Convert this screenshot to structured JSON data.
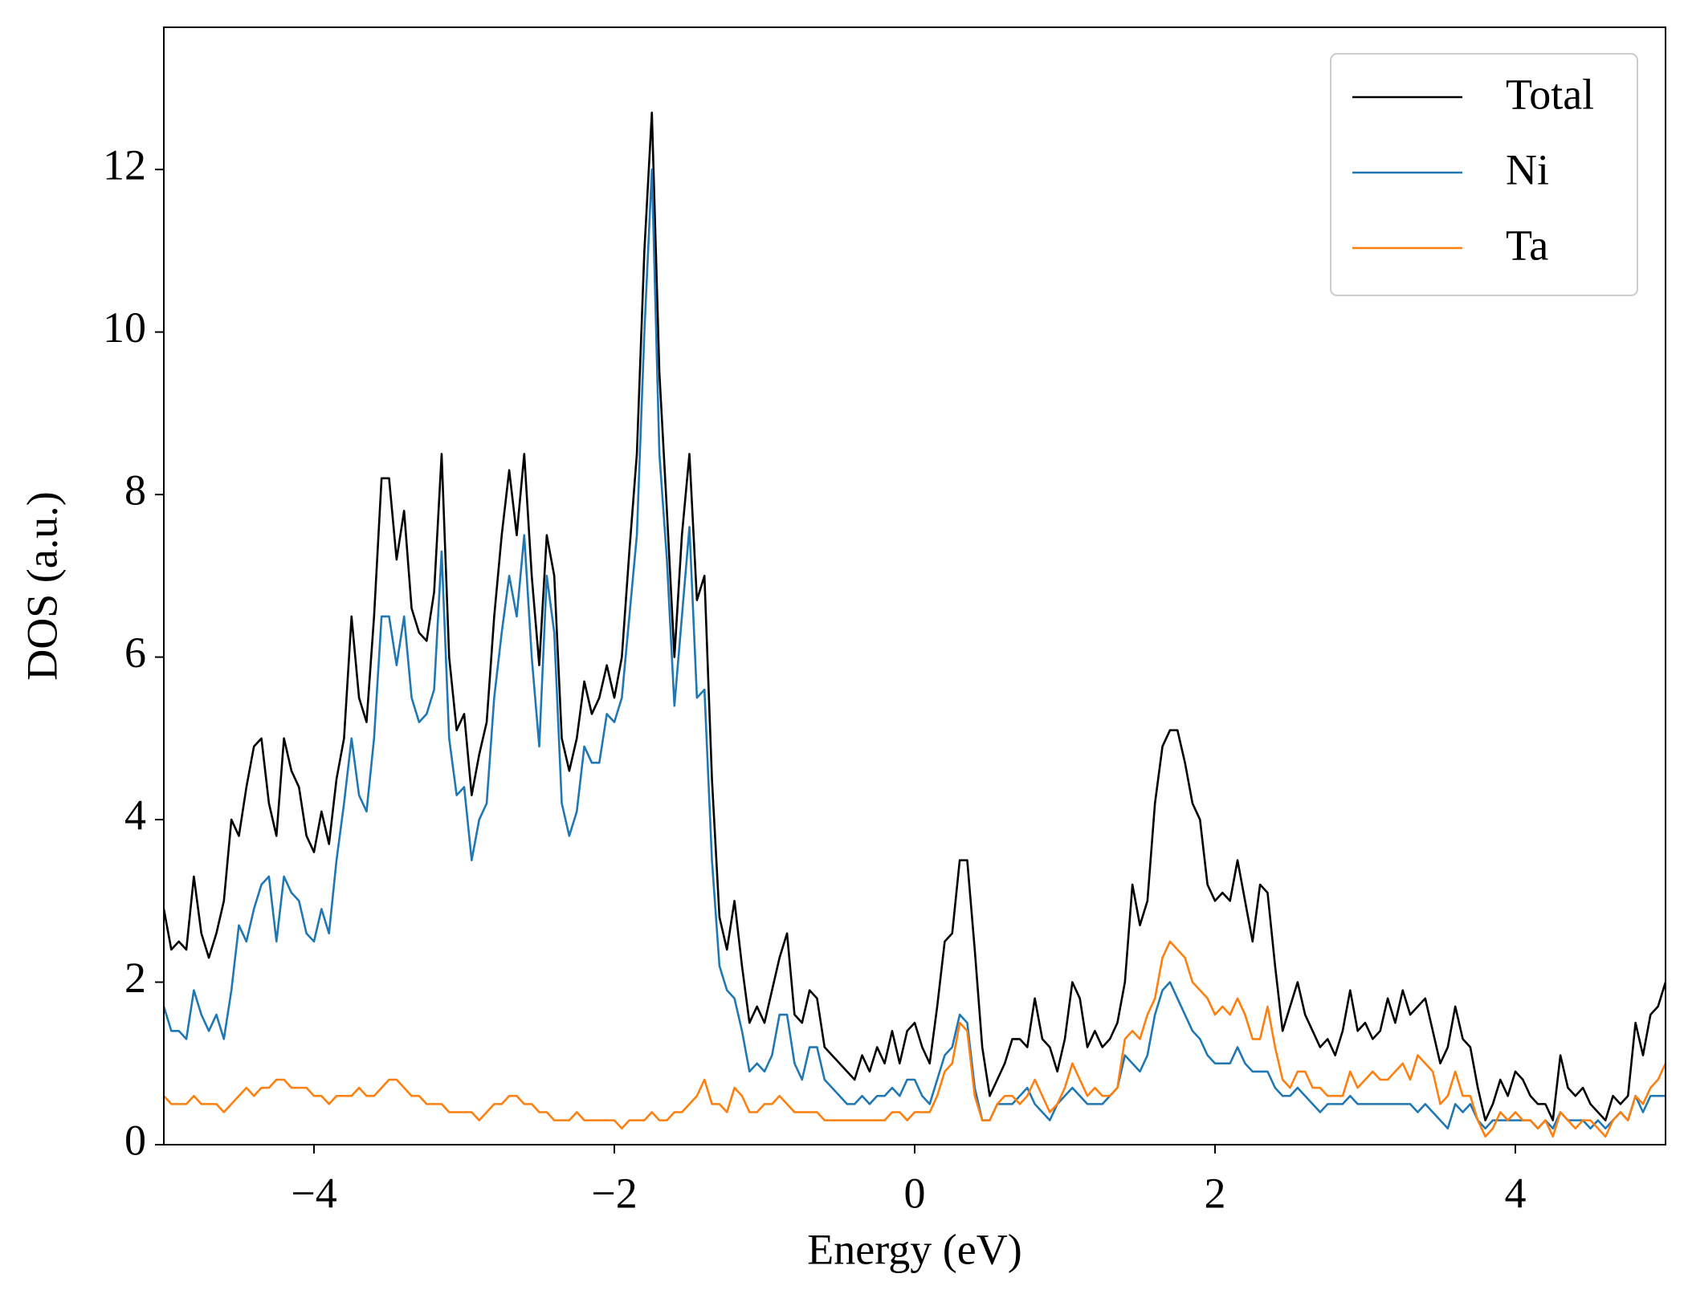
{
  "chart_data": {
    "type": "line",
    "xlabel": "Energy (eV)",
    "ylabel": "DOS (a.u.)",
    "xlim": [
      -5,
      5
    ],
    "ylim": [
      0,
      13.75
    ],
    "xticks": [
      {
        "value": -4,
        "label": "−4"
      },
      {
        "value": -2,
        "label": "−2"
      },
      0,
      2,
      4
    ],
    "yticks": [
      0,
      2,
      4,
      6,
      8,
      10,
      12
    ],
    "legend": "upper right",
    "x": [
      -5,
      -4.95,
      -4.9,
      -4.85,
      -4.8,
      -4.75,
      -4.7,
      -4.65,
      -4.6,
      -4.55,
      -4.5,
      -4.45,
      -4.4,
      -4.35,
      -4.3,
      -4.25,
      -4.2,
      -4.15,
      -4.1,
      -4.05,
      -4,
      -3.95,
      -3.9,
      -3.85,
      -3.8,
      -3.75,
      -3.7,
      -3.65,
      -3.6,
      -3.55,
      -3.5,
      -3.45,
      -3.4,
      -3.35,
      -3.3,
      -3.25,
      -3.2,
      -3.15,
      -3.1,
      -3.05,
      -3,
      -2.95,
      -2.9,
      -2.85,
      -2.8,
      -2.75,
      -2.7,
      -2.65,
      -2.6,
      -2.55,
      -2.5,
      -2.45,
      -2.4,
      -2.35,
      -2.3,
      -2.25,
      -2.2,
      -2.15,
      -2.1,
      -2.05,
      -2,
      -1.95,
      -1.9,
      -1.85,
      -1.8,
      -1.75,
      -1.7,
      -1.65,
      -1.6,
      -1.55,
      -1.5,
      -1.45,
      -1.4,
      -1.35,
      -1.3,
      -1.25,
      -1.2,
      -1.15,
      -1.1,
      -1.05,
      -1,
      -0.95,
      -0.9,
      -0.85,
      -0.8,
      -0.75,
      -0.7,
      -0.65,
      -0.6,
      -0.55,
      -0.5,
      -0.45,
      -0.4,
      -0.35,
      -0.3,
      -0.25,
      -0.2,
      -0.15,
      -0.1,
      -0.05,
      0,
      0.05,
      0.1,
      0.15,
      0.2,
      0.25,
      0.3,
      0.35,
      0.4,
      0.45,
      0.5,
      0.55,
      0.6,
      0.65,
      0.7,
      0.75,
      0.8,
      0.85,
      0.9,
      0.95,
      1,
      1.05,
      1.1,
      1.15,
      1.2,
      1.25,
      1.3,
      1.35,
      1.4,
      1.45,
      1.5,
      1.55,
      1.6,
      1.65,
      1.7,
      1.75,
      1.8,
      1.85,
      1.9,
      1.95,
      2,
      2.05,
      2.1,
      2.15,
      2.2,
      2.25,
      2.3,
      2.35,
      2.4,
      2.45,
      2.5,
      2.55,
      2.6,
      2.65,
      2.7,
      2.75,
      2.8,
      2.85,
      2.9,
      2.95,
      3,
      3.05,
      3.1,
      3.15,
      3.2,
      3.25,
      3.3,
      3.35,
      3.4,
      3.45,
      3.5,
      3.55,
      3.6,
      3.65,
      3.7,
      3.75,
      3.8,
      3.85,
      3.9,
      3.95,
      4,
      4.05,
      4.1,
      4.15,
      4.2,
      4.25,
      4.3,
      4.35,
      4.4,
      4.45,
      4.5,
      4.55,
      4.6,
      4.65,
      4.7,
      4.75,
      4.8,
      4.85,
      4.9,
      4.95,
      5
    ],
    "series": [
      {
        "name": "Total",
        "color": "#000000",
        "values": [
          2.9,
          2.4,
          2.5,
          2.4,
          3.3,
          2.6,
          2.3,
          2.6,
          3.0,
          4.0,
          3.8,
          4.4,
          4.9,
          5.0,
          4.2,
          3.8,
          5.0,
          4.6,
          4.4,
          3.8,
          3.6,
          4.1,
          3.7,
          4.5,
          5.0,
          6.5,
          5.5,
          5.2,
          6.5,
          8.2,
          8.2,
          7.2,
          7.8,
          6.6,
          6.3,
          6.2,
          6.8,
          8.5,
          6.0,
          5.1,
          5.3,
          4.3,
          4.8,
          5.2,
          6.5,
          7.5,
          8.3,
          7.5,
          8.5,
          7.0,
          5.9,
          7.5,
          7.0,
          5.0,
          4.6,
          5.0,
          5.7,
          5.3,
          5.5,
          5.9,
          5.5,
          6.0,
          7.3,
          8.5,
          11.0,
          12.7,
          9.5,
          7.8,
          6.0,
          7.5,
          8.5,
          6.7,
          7.0,
          4.5,
          2.8,
          2.4,
          3.0,
          2.2,
          1.5,
          1.7,
          1.5,
          1.9,
          2.3,
          2.6,
          1.6,
          1.5,
          1.9,
          1.8,
          1.2,
          1.1,
          1.0,
          0.9,
          0.8,
          1.1,
          0.9,
          1.2,
          1.0,
          1.4,
          1.0,
          1.4,
          1.5,
          1.2,
          1.0,
          1.7,
          2.5,
          2.6,
          3.5,
          3.5,
          2.4,
          1.2,
          0.6,
          0.8,
          1.0,
          1.3,
          1.3,
          1.2,
          1.8,
          1.3,
          1.2,
          0.9,
          1.3,
          2.0,
          1.8,
          1.2,
          1.4,
          1.2,
          1.3,
          1.5,
          2.0,
          3.2,
          2.7,
          3.0,
          4.2,
          4.9,
          5.1,
          5.1,
          4.7,
          4.2,
          4.0,
          3.2,
          3.0,
          3.1,
          3.0,
          3.5,
          3.0,
          2.5,
          3.2,
          3.1,
          2.2,
          1.4,
          1.7,
          2.0,
          1.6,
          1.4,
          1.2,
          1.3,
          1.1,
          1.4,
          1.9,
          1.4,
          1.5,
          1.3,
          1.4,
          1.8,
          1.5,
          1.9,
          1.6,
          1.7,
          1.8,
          1.4,
          1.0,
          1.2,
          1.7,
          1.3,
          1.2,
          0.7,
          0.3,
          0.5,
          0.8,
          0.6,
          0.9,
          0.8,
          0.6,
          0.5,
          0.5,
          0.3,
          1.1,
          0.7,
          0.6,
          0.7,
          0.5,
          0.4,
          0.3,
          0.6,
          0.5,
          0.6,
          1.5,
          1.1,
          1.6,
          1.7,
          2.0
        ]
      },
      {
        "name": "Ni",
        "color": "#1f77b4",
        "values": [
          1.7,
          1.4,
          1.4,
          1.3,
          1.9,
          1.6,
          1.4,
          1.6,
          1.3,
          1.9,
          2.7,
          2.5,
          2.9,
          3.2,
          3.3,
          2.5,
          3.3,
          3.1,
          3.0,
          2.6,
          2.5,
          2.9,
          2.6,
          3.5,
          4.2,
          5.0,
          4.3,
          4.1,
          5.0,
          6.5,
          6.5,
          5.9,
          6.5,
          5.5,
          5.2,
          5.3,
          5.6,
          7.3,
          5.0,
          4.3,
          4.4,
          3.5,
          4.0,
          4.2,
          5.5,
          6.3,
          7.0,
          6.5,
          7.5,
          6.0,
          4.9,
          7.0,
          6.3,
          4.2,
          3.8,
          4.1,
          4.9,
          4.7,
          4.7,
          5.3,
          5.2,
          5.5,
          6.5,
          7.5,
          10.0,
          12.0,
          8.5,
          7.2,
          5.4,
          6.5,
          7.6,
          5.5,
          5.6,
          3.5,
          2.2,
          1.9,
          1.8,
          1.4,
          0.9,
          1.0,
          0.9,
          1.1,
          1.6,
          1.6,
          1.0,
          0.8,
          1.2,
          1.2,
          0.8,
          0.7,
          0.6,
          0.5,
          0.5,
          0.6,
          0.5,
          0.6,
          0.6,
          0.7,
          0.6,
          0.8,
          0.8,
          0.6,
          0.5,
          0.8,
          1.1,
          1.2,
          1.6,
          1.5,
          0.7,
          0.3,
          0.3,
          0.5,
          0.5,
          0.5,
          0.6,
          0.7,
          0.5,
          0.4,
          0.3,
          0.5,
          0.6,
          0.7,
          0.6,
          0.5,
          0.5,
          0.5,
          0.6,
          0.7,
          1.1,
          1.0,
          0.9,
          1.1,
          1.6,
          1.9,
          2.0,
          1.8,
          1.6,
          1.4,
          1.3,
          1.1,
          1.0,
          1.0,
          1.0,
          1.2,
          1.0,
          0.9,
          0.9,
          0.9,
          0.7,
          0.6,
          0.6,
          0.7,
          0.6,
          0.5,
          0.4,
          0.5,
          0.5,
          0.5,
          0.6,
          0.5,
          0.5,
          0.5,
          0.5,
          0.5,
          0.5,
          0.5,
          0.5,
          0.4,
          0.5,
          0.4,
          0.3,
          0.2,
          0.5,
          0.4,
          0.5,
          0.3,
          0.2,
          0.3,
          0.3,
          0.3,
          0.3,
          0.3,
          0.3,
          0.2,
          0.3,
          0.2,
          0.4,
          0.3,
          0.3,
          0.3,
          0.2,
          0.3,
          0.2,
          0.3,
          0.4,
          0.3,
          0.6,
          0.4,
          0.6,
          0.6,
          0.6
        ]
      },
      {
        "name": "Ta",
        "color": "#ff7f0e",
        "values": [
          0.6,
          0.5,
          0.5,
          0.5,
          0.6,
          0.5,
          0.5,
          0.5,
          0.4,
          0.5,
          0.6,
          0.7,
          0.6,
          0.7,
          0.7,
          0.8,
          0.8,
          0.7,
          0.7,
          0.7,
          0.6,
          0.6,
          0.5,
          0.6,
          0.6,
          0.6,
          0.7,
          0.6,
          0.6,
          0.7,
          0.8,
          0.8,
          0.7,
          0.6,
          0.6,
          0.5,
          0.5,
          0.5,
          0.4,
          0.4,
          0.4,
          0.4,
          0.3,
          0.4,
          0.5,
          0.5,
          0.6,
          0.6,
          0.5,
          0.5,
          0.4,
          0.4,
          0.3,
          0.3,
          0.3,
          0.4,
          0.3,
          0.3,
          0.3,
          0.3,
          0.3,
          0.2,
          0.3,
          0.3,
          0.3,
          0.4,
          0.3,
          0.3,
          0.4,
          0.4,
          0.5,
          0.6,
          0.8,
          0.5,
          0.5,
          0.4,
          0.7,
          0.6,
          0.4,
          0.4,
          0.5,
          0.5,
          0.6,
          0.5,
          0.4,
          0.4,
          0.4,
          0.4,
          0.3,
          0.3,
          0.3,
          0.3,
          0.3,
          0.3,
          0.3,
          0.3,
          0.3,
          0.4,
          0.4,
          0.3,
          0.4,
          0.4,
          0.4,
          0.6,
          0.9,
          1.0,
          1.5,
          1.4,
          0.6,
          0.3,
          0.3,
          0.5,
          0.6,
          0.6,
          0.5,
          0.6,
          0.8,
          0.6,
          0.4,
          0.5,
          0.7,
          1.0,
          0.8,
          0.6,
          0.7,
          0.6,
          0.6,
          0.7,
          1.3,
          1.4,
          1.3,
          1.6,
          1.8,
          2.3,
          2.5,
          2.4,
          2.3,
          2.0,
          1.9,
          1.8,
          1.6,
          1.7,
          1.6,
          1.8,
          1.6,
          1.3,
          1.3,
          1.7,
          1.2,
          0.8,
          0.7,
          0.9,
          0.9,
          0.7,
          0.7,
          0.6,
          0.6,
          0.6,
          0.9,
          0.7,
          0.8,
          0.9,
          0.8,
          0.8,
          0.9,
          1.0,
          0.8,
          1.1,
          1.0,
          0.9,
          0.5,
          0.6,
          0.9,
          0.6,
          0.6,
          0.3,
          0.1,
          0.2,
          0.4,
          0.3,
          0.4,
          0.3,
          0.3,
          0.2,
          0.3,
          0.1,
          0.4,
          0.3,
          0.2,
          0.3,
          0.3,
          0.2,
          0.1,
          0.3,
          0.4,
          0.3,
          0.6,
          0.5,
          0.7,
          0.8,
          1.0
        ]
      }
    ]
  }
}
